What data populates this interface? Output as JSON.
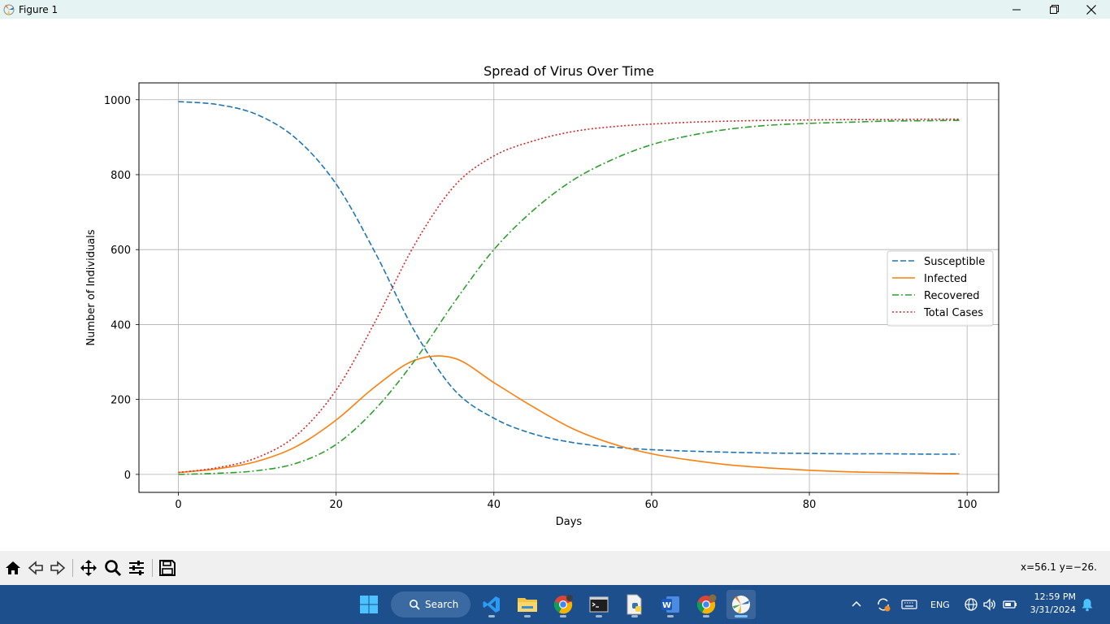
{
  "window": {
    "title": "Figure 1"
  },
  "chart_data": {
    "type": "line",
    "title": "Spread of Virus Over Time",
    "xlabel": "Days",
    "ylabel": "Number of Individuals",
    "xlim": [
      -5,
      104
    ],
    "ylim": [
      -48,
      1045
    ],
    "xticks": [
      "0",
      "20",
      "40",
      "60",
      "80",
      "100"
    ],
    "yticks": [
      "0",
      "200",
      "400",
      "600",
      "800",
      "1000"
    ],
    "grid": true,
    "legend_position": "center-right",
    "x": [
      0,
      5,
      10,
      15,
      20,
      25,
      30,
      35,
      40,
      45,
      50,
      55,
      60,
      65,
      70,
      75,
      80,
      85,
      90,
      95,
      99
    ],
    "series": [
      {
        "name": "Susceptible",
        "style": "dashed",
        "color": "#1f77b4",
        "values": [
          995,
          987,
          960,
          895,
          775,
          590,
          380,
          225,
          150,
          108,
          85,
          73,
          66,
          62,
          59,
          57,
          56,
          55,
          55,
          54,
          54
        ]
      },
      {
        "name": "Infected",
        "style": "solid",
        "color": "#ff7f0e",
        "values": [
          5,
          15,
          35,
          75,
          145,
          235,
          305,
          310,
          245,
          180,
          122,
          82,
          55,
          38,
          25,
          17,
          11,
          7,
          5,
          3,
          2
        ]
      },
      {
        "name": "Recovered",
        "style": "dashdot",
        "color": "#2ca02c",
        "values": [
          0,
          3,
          10,
          30,
          80,
          175,
          305,
          460,
          600,
          705,
          785,
          840,
          880,
          905,
          922,
          932,
          937,
          940,
          943,
          944,
          945
        ]
      },
      {
        "name": "Total Cases",
        "style": "dotted",
        "color": "#d62728",
        "values": [
          5,
          18,
          45,
          105,
          225,
          410,
          615,
          770,
          850,
          890,
          915,
          928,
          935,
          940,
          943,
          945,
          946,
          947,
          947,
          948,
          948
        ]
      }
    ]
  },
  "toolbar": {
    "coords": "x=56.1 y=−26.",
    "buttons": [
      "home-icon",
      "back-icon",
      "forward-icon",
      "pan-icon",
      "zoom-icon",
      "configure-icon",
      "save-icon"
    ]
  },
  "taskbar": {
    "search_label": "Search",
    "language": "ENG",
    "time": "12:59 PM",
    "date": "3/31/2024",
    "accent": "#1c4f8c"
  }
}
